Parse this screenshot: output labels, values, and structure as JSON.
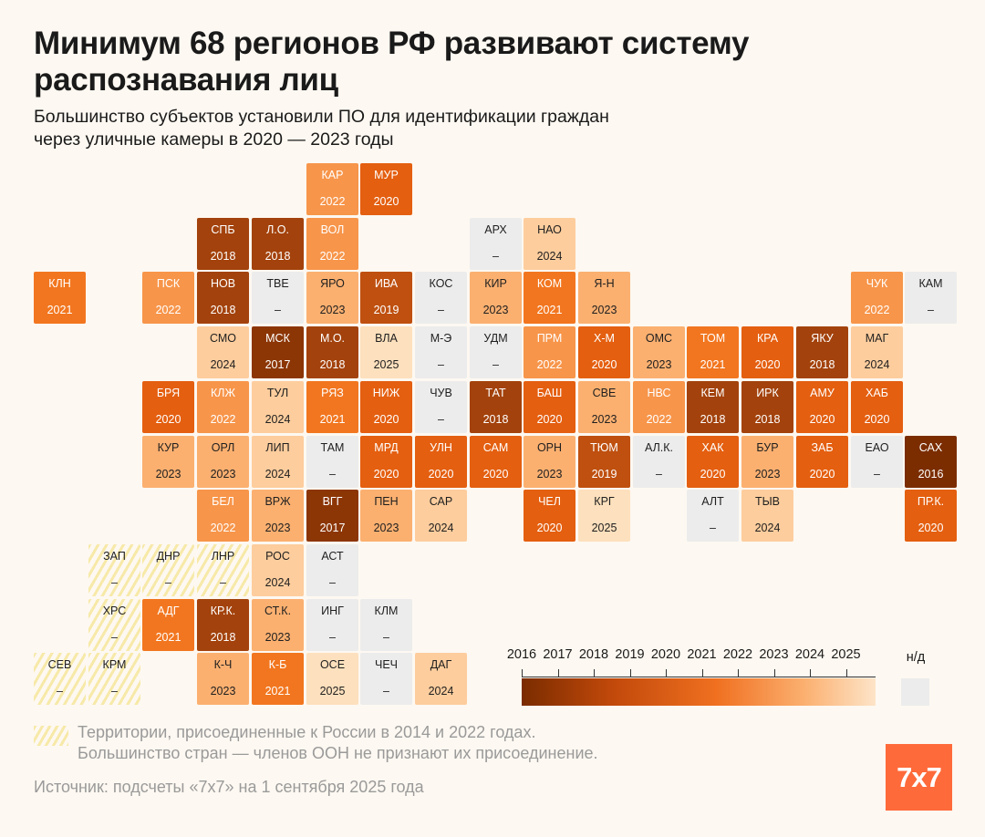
{
  "title": "Минимум 68 регионов РФ развивают систему распознавания лиц",
  "subtitle_line1": "Большинство субъектов установили ПО для идентификации граждан",
  "subtitle_line2": "через уличные камеры в 2020 — 2023 годы",
  "colors": {
    "2016": "#7b2d00",
    "2017": "#8c3606",
    "2018": "#a3420c",
    "2019": "#bf5010",
    "2020": "#e45f10",
    "2021": "#f2761f",
    "2022": "#f7954a",
    "2023": "#fbb070",
    "2024": "#fdcd9d",
    "2025": "#fde0bd",
    "na": "#ececec",
    "annex_stripe": "#f7e9a8"
  },
  "regions": [
    {
      "code": "КАР",
      "year": "2022",
      "col": 5,
      "row": 0
    },
    {
      "code": "МУР",
      "year": "2020",
      "col": 6,
      "row": 0
    },
    {
      "code": "СПБ",
      "year": "2018",
      "col": 3,
      "row": 1
    },
    {
      "code": "Л.О.",
      "year": "2018",
      "col": 4,
      "row": 1
    },
    {
      "code": "ВОЛ",
      "year": "2022",
      "col": 5,
      "row": 1
    },
    {
      "code": "АРХ",
      "year": "–",
      "col": 8,
      "row": 1
    },
    {
      "code": "НАО",
      "year": "2024",
      "col": 9,
      "row": 1
    },
    {
      "code": "КЛН",
      "year": "2021",
      "col": 0,
      "row": 2
    },
    {
      "code": "ПСК",
      "year": "2022",
      "col": 2,
      "row": 2
    },
    {
      "code": "НОВ",
      "year": "2018",
      "col": 3,
      "row": 2
    },
    {
      "code": "ТВЕ",
      "year": "–",
      "col": 4,
      "row": 2
    },
    {
      "code": "ЯРО",
      "year": "2023",
      "col": 5,
      "row": 2
    },
    {
      "code": "ИВА",
      "year": "2019",
      "col": 6,
      "row": 2
    },
    {
      "code": "КОС",
      "year": "–",
      "col": 7,
      "row": 2
    },
    {
      "code": "КИР",
      "year": "2023",
      "col": 8,
      "row": 2
    },
    {
      "code": "КОМ",
      "year": "2021",
      "col": 9,
      "row": 2
    },
    {
      "code": "Я-Н",
      "year": "2023",
      "col": 10,
      "row": 2
    },
    {
      "code": "ЧУК",
      "year": "2022",
      "col": 15,
      "row": 2
    },
    {
      "code": "КАМ",
      "year": "–",
      "col": 16,
      "row": 2
    },
    {
      "code": "СМО",
      "year": "2024",
      "col": 3,
      "row": 3
    },
    {
      "code": "МСК",
      "year": "2017",
      "col": 4,
      "row": 3
    },
    {
      "code": "М.О.",
      "year": "2018",
      "col": 5,
      "row": 3
    },
    {
      "code": "ВЛА",
      "year": "2025",
      "col": 6,
      "row": 3
    },
    {
      "code": "М-Э",
      "year": "–",
      "col": 7,
      "row": 3
    },
    {
      "code": "УДМ",
      "year": "–",
      "col": 8,
      "row": 3
    },
    {
      "code": "ПРМ",
      "year": "2022",
      "col": 9,
      "row": 3
    },
    {
      "code": "Х-М",
      "year": "2020",
      "col": 10,
      "row": 3
    },
    {
      "code": "ОМС",
      "year": "2023",
      "col": 11,
      "row": 3
    },
    {
      "code": "ТОМ",
      "year": "2021",
      "col": 12,
      "row": 3
    },
    {
      "code": "КРА",
      "year": "2020",
      "col": 13,
      "row": 3
    },
    {
      "code": "ЯКУ",
      "year": "2018",
      "col": 14,
      "row": 3
    },
    {
      "code": "МАГ",
      "year": "2024",
      "col": 15,
      "row": 3
    },
    {
      "code": "БРЯ",
      "year": "2020",
      "col": 2,
      "row": 4
    },
    {
      "code": "КЛЖ",
      "year": "2022",
      "col": 3,
      "row": 4
    },
    {
      "code": "ТУЛ",
      "year": "2024",
      "col": 4,
      "row": 4
    },
    {
      "code": "РЯЗ",
      "year": "2021",
      "col": 5,
      "row": 4
    },
    {
      "code": "НИЖ",
      "year": "2020",
      "col": 6,
      "row": 4
    },
    {
      "code": "ЧУВ",
      "year": "–",
      "col": 7,
      "row": 4
    },
    {
      "code": "ТАТ",
      "year": "2018",
      "col": 8,
      "row": 4
    },
    {
      "code": "БАШ",
      "year": "2020",
      "col": 9,
      "row": 4
    },
    {
      "code": "СВЕ",
      "year": "2023",
      "col": 10,
      "row": 4
    },
    {
      "code": "НВС",
      "year": "2022",
      "col": 11,
      "row": 4
    },
    {
      "code": "КЕМ",
      "year": "2018",
      "col": 12,
      "row": 4
    },
    {
      "code": "ИРК",
      "year": "2018",
      "col": 13,
      "row": 4
    },
    {
      "code": "АМУ",
      "year": "2020",
      "col": 14,
      "row": 4
    },
    {
      "code": "ХАБ",
      "year": "2020",
      "col": 15,
      "row": 4
    },
    {
      "code": "КУР",
      "year": "2023",
      "col": 2,
      "row": 5
    },
    {
      "code": "ОРЛ",
      "year": "2023",
      "col": 3,
      "row": 5
    },
    {
      "code": "ЛИП",
      "year": "2024",
      "col": 4,
      "row": 5
    },
    {
      "code": "ТАМ",
      "year": "–",
      "col": 5,
      "row": 5
    },
    {
      "code": "МРД",
      "year": "2020",
      "col": 6,
      "row": 5
    },
    {
      "code": "УЛН",
      "year": "2020",
      "col": 7,
      "row": 5
    },
    {
      "code": "САМ",
      "year": "2020",
      "col": 8,
      "row": 5
    },
    {
      "code": "ОРН",
      "year": "2023",
      "col": 9,
      "row": 5
    },
    {
      "code": "ТЮМ",
      "year": "2019",
      "col": 10,
      "row": 5
    },
    {
      "code": "АЛ.К.",
      "year": "–",
      "col": 11,
      "row": 5
    },
    {
      "code": "ХАК",
      "year": "2020",
      "col": 12,
      "row": 5
    },
    {
      "code": "БУР",
      "year": "2023",
      "col": 13,
      "row": 5
    },
    {
      "code": "ЗАБ",
      "year": "2020",
      "col": 14,
      "row": 5
    },
    {
      "code": "ЕАО",
      "year": "–",
      "col": 15,
      "row": 5
    },
    {
      "code": "САХ",
      "year": "2016",
      "col": 16,
      "row": 5
    },
    {
      "code": "БЕЛ",
      "year": "2022",
      "col": 3,
      "row": 6
    },
    {
      "code": "ВРЖ",
      "year": "2023",
      "col": 4,
      "row": 6
    },
    {
      "code": "ВГГ",
      "year": "2017",
      "col": 5,
      "row": 6
    },
    {
      "code": "ПЕН",
      "year": "2023",
      "col": 6,
      "row": 6
    },
    {
      "code": "САР",
      "year": "2024",
      "col": 7,
      "row": 6
    },
    {
      "code": "ЧЕЛ",
      "year": "2020",
      "col": 9,
      "row": 6
    },
    {
      "code": "КРГ",
      "year": "2025",
      "col": 10,
      "row": 6
    },
    {
      "code": "АЛТ",
      "year": "–",
      "col": 12,
      "row": 6
    },
    {
      "code": "ТЫВ",
      "year": "2024",
      "col": 13,
      "row": 6
    },
    {
      "code": "ПР.К.",
      "year": "2020",
      "col": 16,
      "row": 6
    },
    {
      "code": "ЗАП",
      "year": "–",
      "col": 1,
      "row": 7,
      "annex": true
    },
    {
      "code": "ДНР",
      "year": "–",
      "col": 2,
      "row": 7,
      "annex": true
    },
    {
      "code": "ЛНР",
      "year": "–",
      "col": 3,
      "row": 7,
      "annex": true
    },
    {
      "code": "РОС",
      "year": "2024",
      "col": 4,
      "row": 7
    },
    {
      "code": "АСТ",
      "year": "–",
      "col": 5,
      "row": 7
    },
    {
      "code": "ХРС",
      "year": "–",
      "col": 1,
      "row": 8,
      "annex": true
    },
    {
      "code": "АДГ",
      "year": "2021",
      "col": 2,
      "row": 8
    },
    {
      "code": "КР.К.",
      "year": "2018",
      "col": 3,
      "row": 8
    },
    {
      "code": "СТ.К.",
      "year": "2023",
      "col": 4,
      "row": 8
    },
    {
      "code": "ИНГ",
      "year": "–",
      "col": 5,
      "row": 8
    },
    {
      "code": "КЛМ",
      "year": "–",
      "col": 6,
      "row": 8
    },
    {
      "code": "СЕВ",
      "year": "–",
      "col": 0,
      "row": 9,
      "annex": true
    },
    {
      "code": "КРМ",
      "year": "–",
      "col": 1,
      "row": 9,
      "annex": true
    },
    {
      "code": "К-Ч",
      "year": "2023",
      "col": 3,
      "row": 9
    },
    {
      "code": "К-Б",
      "year": "2021",
      "col": 4,
      "row": 9
    },
    {
      "code": "ОСЕ",
      "year": "2025",
      "col": 5,
      "row": 9
    },
    {
      "code": "ЧЕЧ",
      "year": "–",
      "col": 6,
      "row": 9
    },
    {
      "code": "ДАГ",
      "year": "2024",
      "col": 7,
      "row": 9
    }
  ],
  "legend": {
    "years": [
      "2016",
      "2017",
      "2018",
      "2019",
      "2020",
      "2021",
      "2022",
      "2023",
      "2024",
      "2025"
    ],
    "na_label": "н/д"
  },
  "note_line1": "Территории, присоединенные к России в 2014 и 2022 годах.",
  "note_line2": "Большинство стран — членов ООН не признают их присоединение.",
  "source": "Источник: подсчеты «7x7» на 1 сентября 2025 года",
  "logo": "7x7"
}
